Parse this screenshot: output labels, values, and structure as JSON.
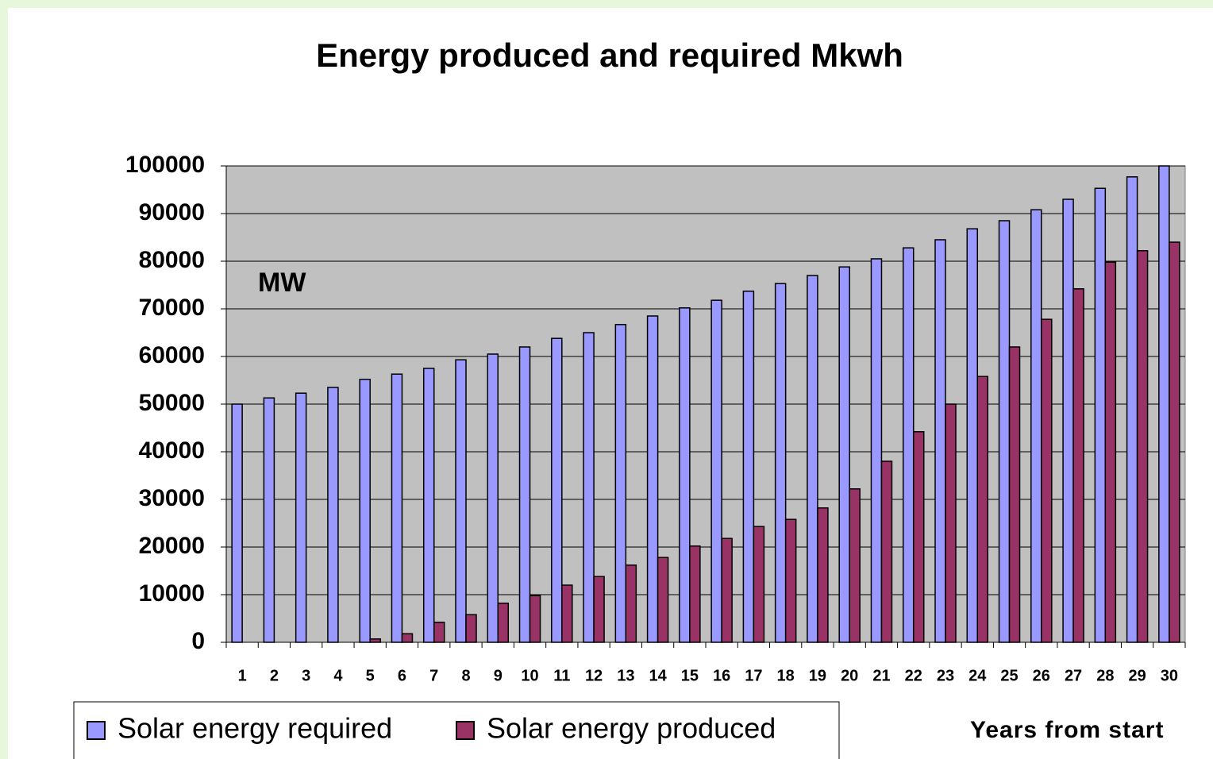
{
  "chart_data": {
    "type": "bar",
    "title": "Energy produced and required Mkwh",
    "annotation": "MW",
    "x_label": "Years from start",
    "categories": [
      "1",
      "2",
      "3",
      "4",
      "5",
      "6",
      "7",
      "8",
      "9",
      "10",
      "11",
      "12",
      "13",
      "14",
      "15",
      "16",
      "17",
      "18",
      "19",
      "20",
      "21",
      "22",
      "23",
      "24",
      "25",
      "26",
      "27",
      "28",
      "29",
      "30"
    ],
    "series": [
      {
        "name": "Solar energy required",
        "color": "#9999ff",
        "values": [
          50000,
          51300,
          52300,
          53500,
          55200,
          56300,
          57500,
          59300,
          60500,
          62000,
          63800,
          65000,
          66700,
          68500,
          70200,
          71800,
          73700,
          75300,
          77000,
          78800,
          80500,
          82800,
          84500,
          86800,
          88500,
          90800,
          93000,
          95300,
          97700,
          100000
        ]
      },
      {
        "name": "Solar energy produced",
        "color": "#993366",
        "values": [
          0,
          0,
          0,
          0,
          700,
          1800,
          4200,
          5800,
          8200,
          9800,
          12000,
          13800,
          16200,
          17800,
          20200,
          21800,
          24300,
          25800,
          28200,
          32200,
          38000,
          44200,
          50000,
          55800,
          62000,
          67800,
          74200,
          79800,
          82200,
          84000
        ]
      }
    ],
    "ylim": [
      0,
      100000
    ],
    "yticks": [
      0,
      10000,
      20000,
      30000,
      40000,
      50000,
      60000,
      70000,
      80000,
      90000,
      100000
    ],
    "grid": true
  }
}
